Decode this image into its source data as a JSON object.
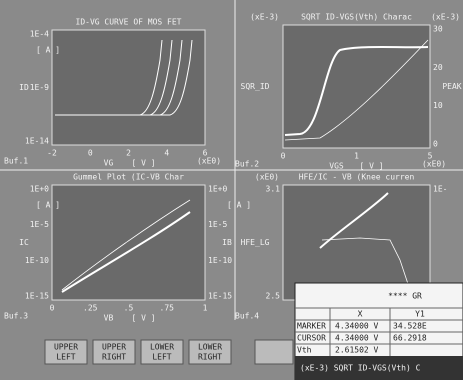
{
  "panels": [
    {
      "title": "ID-VG CURVE OF MOS FET",
      "y_label": "ID",
      "y_unit": "[ A ]",
      "yticks": [
        "1E-4",
        "1E-9",
        "1E-14"
      ],
      "xticks": [
        "-2",
        "0",
        "2",
        "4",
        "6"
      ],
      "x_exp": "(xE0)",
      "x_label": "VG",
      "x_unit": "[ V ]",
      "buffer": "Buf.1"
    },
    {
      "title": "SQRT ID-VGS(Vth) Charac",
      "y_exp": "(xE-3)",
      "y2_exp": "(xE-3)",
      "y_label": "SQR_ID",
      "y2_label": "PEAK",
      "y2ticks": [
        "30",
        "20",
        "10",
        "0"
      ],
      "xticks": [
        "0",
        "1",
        "5"
      ],
      "x_exp": "(xE0)",
      "x_label": "VGS",
      "x_unit": "[ V ]",
      "buffer": "Buf.2"
    },
    {
      "title": "Gummel Plot (IC-VB Char",
      "y_label": "IC",
      "y_unit": "[ A ]",
      "yticks": [
        "1E+0",
        "1E-5",
        "1E-10",
        "1E-15"
      ],
      "y2_label": "IB",
      "y2_unit": "[ A ]",
      "y2ticks": [
        "1E+0",
        "1E-5",
        "1E-10",
        "1E-15"
      ],
      "xticks": [
        "0",
        ".25",
        ".5",
        ".75",
        "1"
      ],
      "x_label": "VB",
      "x_unit": "[ V ]",
      "buffer": "Buf.3"
    },
    {
      "title": "HFE/IC - VB (Knee curren",
      "y_exp": "(xE0)",
      "y_label": "HFE_LG",
      "yticks": [
        "3.1",
        "2.5"
      ],
      "y2ticks": [
        "1E-"
      ],
      "buffer": "Buf.4"
    }
  ],
  "buttons": [
    "UPPER LEFT",
    "UPPER RIGHT",
    "LOWER LEFT",
    "LOWER RIGHT"
  ],
  "table": {
    "header": "**** GR",
    "columns": [
      "X",
      "Y1"
    ],
    "rows": [
      [
        "MARKER",
        "4.34000 V",
        "34.528E"
      ],
      [
        "CURSOR",
        "4.34000 V",
        "66.2918"
      ],
      [
        "Vth",
        "2.61502 V"
      ]
    ],
    "footer": "(xE-3) SQRT ID-VGS(Vth) C"
  }
}
